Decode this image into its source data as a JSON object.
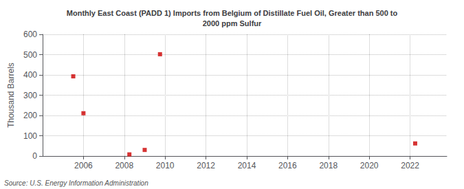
{
  "chart_data": {
    "type": "scatter",
    "title": "Monthly East Coast (PADD 1) Imports from Belgium of Distillate Fuel Oil, Greater than 500 to\n2000 ppm Sulfur",
    "ylabel": "Thousand Barrels",
    "source": "Source: U.S. Energy Information Administration",
    "x": [
      2005.5,
      2006.0,
      2008.25,
      2009.0,
      2009.75,
      2022.25
    ],
    "values": [
      393,
      211,
      8,
      30,
      502,
      62
    ],
    "color": "#cc0000",
    "marker": "square",
    "xlim": [
      2004.0,
      2023.8
    ],
    "ylim": [
      0,
      600
    ],
    "xticks": [
      2006,
      2008,
      2010,
      2012,
      2014,
      2016,
      2018,
      2020,
      2022
    ],
    "yticks": [
      0,
      100,
      200,
      300,
      400,
      500,
      600
    ],
    "grid": true
  }
}
